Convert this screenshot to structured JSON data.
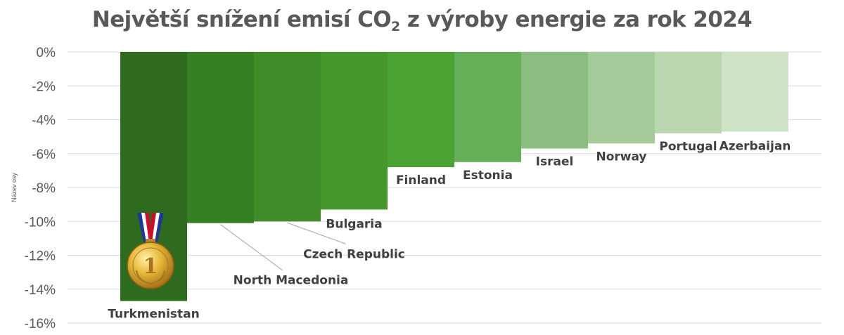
{
  "title": {
    "main": "Největší snížení emisí CO",
    "subscript": "2",
    "rest": " z výroby energie za rok 2024"
  },
  "chart_data": {
    "type": "bar",
    "title": "Největší snížení emisí CO2 z výroby energie za rok 2024",
    "xlabel": "",
    "ylabel": "Název osy",
    "ylim": [
      -16,
      0
    ],
    "grid": true,
    "y_ticks": [
      "0%",
      "-2%",
      "-4%",
      "-6%",
      "-8%",
      "-10%",
      "-12%",
      "-14%",
      "-16%"
    ],
    "categories": [
      "Turkmenistan",
      "North Macedonia",
      "Czech Republic",
      "Bulgaria",
      "Finland",
      "Estonia",
      "Israel",
      "Norway",
      "Portugal",
      "Azerbaijan"
    ],
    "values": [
      -14.7,
      -10.1,
      -10.0,
      -9.3,
      -6.8,
      -6.5,
      -5.7,
      -5.4,
      -4.8,
      -4.7
    ],
    "colors": [
      "#2e6b1e",
      "#367f22",
      "#3f8c28",
      "#47982c",
      "#4ba432",
      "#66ae57",
      "#8cbd80",
      "#a6cb9b",
      "#bad7b1",
      "#cee2c8"
    ],
    "annotations": [
      "medal-1st-place"
    ]
  }
}
